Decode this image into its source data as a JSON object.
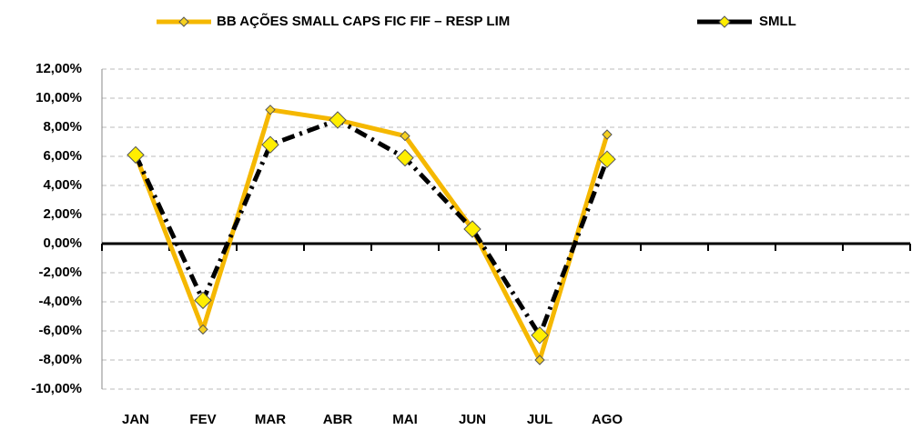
{
  "chart_data": {
    "type": "line",
    "categories": [
      "JAN",
      "FEV",
      "MAR",
      "ABR",
      "MAI",
      "JUN",
      "JUL",
      "AGO",
      null,
      null,
      null,
      null
    ],
    "series": [
      {
        "name": "BB AÇÕES SMALL CAPS FIC FIF – RESP LIM",
        "color": "#f5b800",
        "marker_color": "#f5d020",
        "values": [
          6.1,
          -5.9,
          9.2,
          8.5,
          7.4,
          1.0,
          -8.0,
          7.5,
          null,
          null,
          null,
          null
        ]
      },
      {
        "name": "SMLL",
        "color": "#000000",
        "marker_color": "#ffee00",
        "values": [
          6.1,
          -3.9,
          6.8,
          8.5,
          5.9,
          1.0,
          -6.3,
          5.8,
          null,
          null,
          null,
          null
        ]
      }
    ],
    "ylim": [
      -10,
      12
    ],
    "yticks": [
      {
        "value": -10,
        "label": "-10,00%"
      },
      {
        "value": -8,
        "label": "-8,00%"
      },
      {
        "value": -6,
        "label": "-6,00%"
      },
      {
        "value": -4,
        "label": "-4,00%"
      },
      {
        "value": -2,
        "label": "-2,00%"
      },
      {
        "value": 0,
        "label": "0,00%"
      },
      {
        "value": 2,
        "label": "2,00%"
      },
      {
        "value": 4,
        "label": "4,00%"
      },
      {
        "value": 6,
        "label": "6,00%"
      },
      {
        "value": 8,
        "label": "8,00%"
      },
      {
        "value": 10,
        "label": "10,00%"
      },
      {
        "value": 12,
        "label": "12,00%"
      }
    ],
    "grid": true,
    "legend": "top"
  }
}
